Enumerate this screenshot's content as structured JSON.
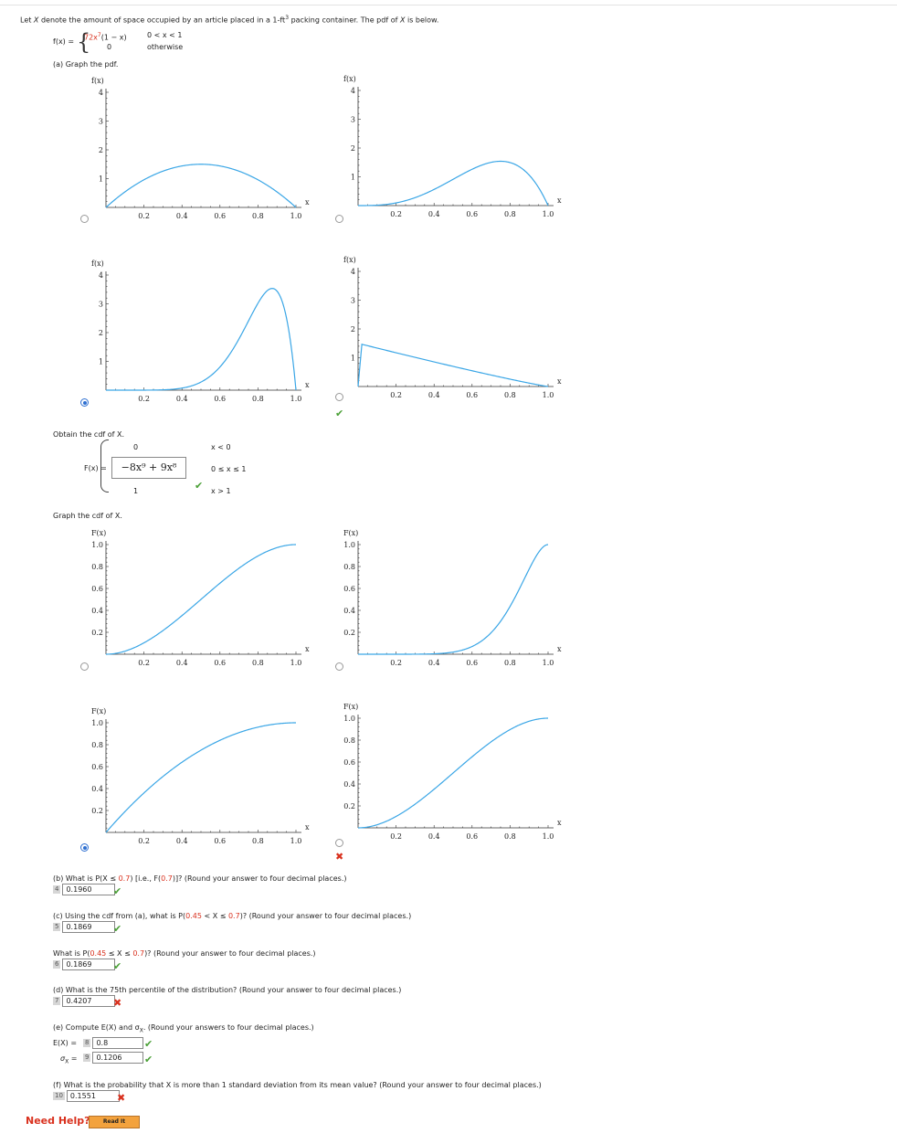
{
  "intro": {
    "text_a": "Let ",
    "var": "X",
    "text_b": " denote the amount of space occupied by an article placed in a 1-ft",
    "sup": "3",
    "text_c": " packing container. The pdf of ",
    "text_d": " is below."
  },
  "pdf_def": {
    "lhs": "f(x) =",
    "row1_expr": "72x",
    "row1_exp": "7",
    "row1_tail": "(1 − x)",
    "row1_cond": "0 < x < 1",
    "row2_expr": "0",
    "row2_cond": "otherwise"
  },
  "part_a": {
    "label": "(a) Graph the pdf."
  },
  "pdf_graphs": [
    {
      "ylabel": "f(x)",
      "xlabel": "x",
      "yticks": [
        "1",
        "2",
        "3",
        "4"
      ],
      "xticks": [
        "0.2",
        "0.4",
        "0.6",
        "0.8",
        "1.0"
      ],
      "selected": false,
      "mark": ""
    },
    {
      "ylabel": "f(x)",
      "xlabel": "x",
      "yticks": [
        "1",
        "2",
        "3",
        "4"
      ],
      "xticks": [
        "0.2",
        "0.4",
        "0.6",
        "0.8",
        "1.0"
      ],
      "selected": false,
      "mark": ""
    },
    {
      "ylabel": "f(x)",
      "xlabel": "x",
      "yticks": [
        "1",
        "2",
        "3",
        "4"
      ],
      "xticks": [
        "0.2",
        "0.4",
        "0.6",
        "0.8",
        "1.0"
      ],
      "selected": true,
      "mark": ""
    },
    {
      "ylabel": "f(x)",
      "xlabel": "x",
      "yticks": [
        "1",
        "2",
        "3",
        "4"
      ],
      "xticks": [
        "0.2",
        "0.4",
        "0.6",
        "0.8",
        "1.0"
      ],
      "selected": false,
      "mark": "check"
    }
  ],
  "cdf_obtain": {
    "label": "Obtain the cdf of X.",
    "lhs": "F(x) =",
    "row1_val": "0",
    "row1_cond": "x < 0",
    "row2_answer": "−8x⁹ + 9x⁸",
    "row2_cond": "0 ≤ x ≤ 1",
    "row3_val": "1",
    "row3_cond": "x > 1"
  },
  "cdf_graph_label": "Graph the cdf of X.",
  "cdf_graphs": [
    {
      "ylabel": "F(x)",
      "xlabel": "x",
      "yticks": [
        "0.2",
        "0.4",
        "0.6",
        "0.8",
        "1.0"
      ],
      "xticks": [
        "0.2",
        "0.4",
        "0.6",
        "0.8",
        "1.0"
      ],
      "selected": false,
      "mark": ""
    },
    {
      "ylabel": "F(x)",
      "xlabel": "x",
      "yticks": [
        "0.2",
        "0.4",
        "0.6",
        "0.8",
        "1.0"
      ],
      "xticks": [
        "0.2",
        "0.4",
        "0.6",
        "0.8",
        "1.0"
      ],
      "selected": false,
      "mark": ""
    },
    {
      "ylabel": "F(x)",
      "xlabel": "x",
      "yticks": [
        "0.2",
        "0.4",
        "0.6",
        "0.8",
        "1.0"
      ],
      "xticks": [
        "0.2",
        "0.4",
        "0.6",
        "0.8",
        "1.0"
      ],
      "selected": true,
      "mark": ""
    },
    {
      "ylabel": "F(x)",
      "xlabel": "x",
      "yticks": [
        "0.2",
        "0.4",
        "0.6",
        "0.8",
        "1.0"
      ],
      "xticks": [
        "0.2",
        "0.4",
        "0.6",
        "0.8",
        "1.0"
      ],
      "selected": false,
      "mark": "cross"
    }
  ],
  "questions": [
    {
      "pre": "(b) What is P(X ≤ ",
      "red1": "0.7",
      "mid": ") [i.e., F(",
      "red2": "0.7",
      "post": ")]? (Round your answer to four decimal places.)",
      "num": "4",
      "answer": "0.1960",
      "mark": "check"
    },
    {
      "pre": "(c) Using the cdf from (a), what is P(",
      "red1": "0.45",
      "mid": " < X ≤ ",
      "red2": "0.7",
      "post": ")? (Round your answer to four decimal places.)",
      "num": "5",
      "answer": "0.1869",
      "mark": "check"
    },
    {
      "pre": "What is P(",
      "red1": "0.45",
      "mid": " ≤ X ≤ ",
      "red2": "0.7",
      "post": ")? (Round your answer to four decimal places.)",
      "num": "6",
      "answer": "0.1869",
      "mark": "check"
    },
    {
      "pre": "(d) What is the 75th percentile of the distribution? (Round your answer to four decimal places.)",
      "red1": "",
      "mid": "",
      "red2": "",
      "post": "",
      "num": "7",
      "answer": "0.4207",
      "mark": "cross"
    }
  ],
  "part_e": {
    "text": "(e) Compute E(X) and σ",
    "sub": "X",
    "tail": ". (Round your answers to four decimal places.)",
    "ex_label": "E(X) =",
    "ex_num": "8",
    "ex_answer": "0.8",
    "ex_mark": "check",
    "sd_label": "σ",
    "sd_sub": "X",
    "sd_eq": " =",
    "sd_num": "9",
    "sd_answer": "0.1206",
    "sd_mark": "check"
  },
  "part_f": {
    "text": "(f) What is the probability that X is more than 1 standard deviation from its mean value? (Round your answer to four decimal places.)",
    "num": "10",
    "answer": "0.1551",
    "mark": "cross"
  },
  "help": {
    "label": "Need Help?",
    "button": "Read It"
  },
  "colors": {
    "curve": "#3aa6e6",
    "correct": "#4aa036",
    "wrong": "#d9311e",
    "radio_selected": "#2e6fd1"
  }
}
